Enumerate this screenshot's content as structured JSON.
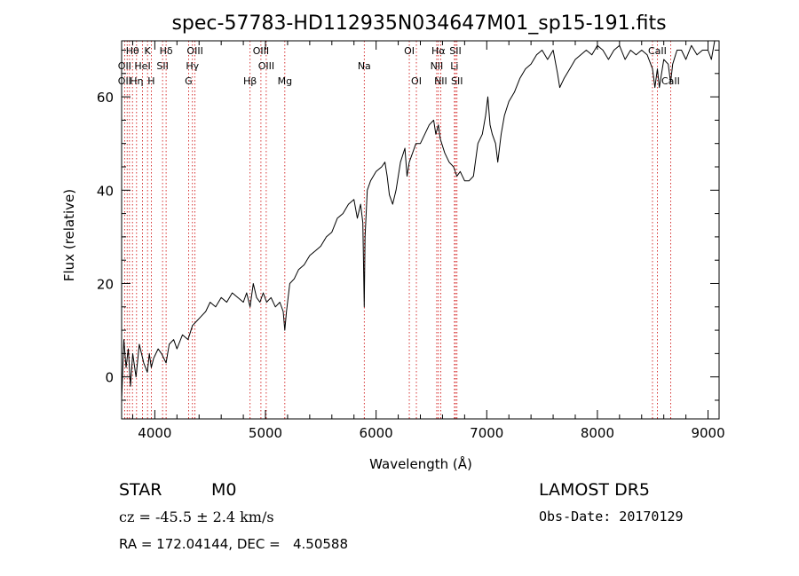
{
  "chart_data": {
    "type": "line",
    "title": "spec-57783-HD112935N034647M01_sp15-191.fits",
    "xlabel": "Wavelength (Å)",
    "ylabel": "Flux (relative)",
    "xlim": [
      3700,
      9100
    ],
    "ylim": [
      -9,
      72
    ],
    "xticks": [
      4000,
      5000,
      6000,
      7000,
      8000,
      9000
    ],
    "yticks": [
      0,
      20,
      40,
      60
    ],
    "series": [
      {
        "color": "#000000",
        "x": [
          3700,
          3720,
          3740,
          3760,
          3780,
          3800,
          3830,
          3860,
          3900,
          3933,
          3950,
          3968,
          3990,
          4030,
          4060,
          4102,
          4130,
          4170,
          4200,
          4250,
          4300,
          4340,
          4380,
          4420,
          4460,
          4500,
          4550,
          4600,
          4650,
          4700,
          4750,
          4800,
          4830,
          4861,
          4890,
          4920,
          4950,
          4980,
          5010,
          5050,
          5090,
          5130,
          5160,
          5175,
          5190,
          5220,
          5260,
          5300,
          5350,
          5400,
          5450,
          5500,
          5550,
          5600,
          5650,
          5700,
          5750,
          5800,
          5830,
          5860,
          5880,
          5893,
          5900,
          5920,
          5950,
          6000,
          6050,
          6080,
          6100,
          6120,
          6150,
          6180,
          6220,
          6260,
          6280,
          6300,
          6330,
          6360,
          6400,
          6440,
          6480,
          6520,
          6540,
          6563,
          6580,
          6620,
          6660,
          6700,
          6730,
          6760,
          6800,
          6840,
          6880,
          6920,
          6960,
          6990,
          7010,
          7030,
          7050,
          7080,
          7100,
          7130,
          7160,
          7200,
          7250,
          7300,
          7350,
          7400,
          7450,
          7500,
          7550,
          7600,
          7640,
          7660,
          7680,
          7700,
          7750,
          7800,
          7850,
          7900,
          7950,
          8000,
          8050,
          8100,
          8150,
          8200,
          8250,
          8300,
          8350,
          8400,
          8450,
          8498,
          8520,
          8542,
          8560,
          8600,
          8640,
          8662,
          8680,
          8720,
          8760,
          8800,
          8850,
          8900,
          8950,
          9000,
          9030,
          9060,
          9080
        ],
        "values": [
          -5,
          8,
          2,
          6,
          -2,
          5,
          0,
          7,
          3,
          1,
          5,
          2,
          4,
          6,
          5,
          3,
          7,
          8,
          6,
          9,
          8,
          11,
          12,
          13,
          14,
          16,
          15,
          17,
          16,
          18,
          17,
          16,
          18,
          15,
          20,
          17,
          16,
          18,
          16,
          17,
          15,
          16,
          14,
          10,
          14,
          20,
          21,
          23,
          24,
          26,
          27,
          28,
          30,
          31,
          34,
          35,
          37,
          38,
          34,
          37,
          33,
          15,
          30,
          40,
          42,
          44,
          45,
          46,
          43,
          39,
          37,
          40,
          46,
          49,
          43,
          46,
          48,
          50,
          50,
          52,
          54,
          55,
          52,
          54,
          51,
          48,
          46,
          45,
          43,
          44,
          42,
          42,
          43,
          50,
          52,
          56,
          60,
          54,
          52,
          50,
          46,
          52,
          56,
          59,
          61,
          64,
          66,
          67,
          69,
          70,
          68,
          70,
          65,
          62,
          63,
          64,
          66,
          68,
          69,
          70,
          69,
          71,
          70,
          68,
          70,
          71,
          68,
          70,
          69,
          70,
          69,
          66,
          62,
          66,
          62,
          68,
          67,
          63,
          67,
          70,
          70,
          68,
          71,
          69,
          70,
          70,
          68,
          72,
          72
        ]
      }
    ],
    "line_markers": [
      {
        "name": "Hθ",
        "wavelength": 3798,
        "row": 1
      },
      {
        "name": "K",
        "wavelength": 3934,
        "row": 1
      },
      {
        "name": "Hδ",
        "wavelength": 4102,
        "row": 1
      },
      {
        "name": "OIII",
        "wavelength": 4363,
        "row": 1
      },
      {
        "name": "OIII",
        "wavelength": 4959,
        "row": 1
      },
      {
        "name": "OI",
        "wavelength": 6300,
        "row": 1
      },
      {
        "name": "Hα",
        "wavelength": 6563,
        "row": 1
      },
      {
        "name": "SII",
        "wavelength": 6717,
        "row": 1
      },
      {
        "name": "CaII",
        "wavelength": 8542,
        "row": 1
      },
      {
        "name": "OII",
        "wavelength": 3727,
        "row": 2
      },
      {
        "name": "HeI",
        "wavelength": 3889,
        "row": 2
      },
      {
        "name": "SII",
        "wavelength": 4070,
        "row": 2
      },
      {
        "name": "Hγ",
        "wavelength": 4340,
        "row": 2
      },
      {
        "name": "OIII",
        "wavelength": 5007,
        "row": 2
      },
      {
        "name": "Na",
        "wavelength": 5893,
        "row": 2
      },
      {
        "name": "NII",
        "wavelength": 6548,
        "row": 2
      },
      {
        "name": "Li",
        "wavelength": 6708,
        "row": 2
      },
      {
        "name": "OII",
        "wavelength": 3727,
        "row": 3
      },
      {
        "name": "Hη",
        "wavelength": 3835,
        "row": 3
      },
      {
        "name": "H",
        "wavelength": 3968,
        "row": 3
      },
      {
        "name": "G",
        "wavelength": 4305,
        "row": 3
      },
      {
        "name": "Hβ",
        "wavelength": 4861,
        "row": 3
      },
      {
        "name": "Mg",
        "wavelength": 5175,
        "row": 3
      },
      {
        "name": "OI",
        "wavelength": 6364,
        "row": 3
      },
      {
        "name": "NII",
        "wavelength": 6584,
        "row": 3
      },
      {
        "name": "SII",
        "wavelength": 6731,
        "row": 3
      },
      {
        "name": "CaII",
        "wavelength": 8662,
        "row": 3
      }
    ],
    "marker_lines": [
      3727,
      3750,
      3771,
      3798,
      3835,
      3889,
      3934,
      3968,
      4070,
      4102,
      4305,
      4340,
      4363,
      4861,
      4959,
      5007,
      5175,
      5893,
      6300,
      6364,
      6548,
      6563,
      6584,
      6708,
      6717,
      6731,
      8498,
      8542,
      8662
    ],
    "marker_color": "#cc0000"
  },
  "info": {
    "object_type": "STAR",
    "subclass": "M0",
    "survey": "LAMOST DR5",
    "cz": "cz = -45.5 ± 2.4 km/s",
    "obs_date": "Obs-Date: 20170129",
    "coords": "RA = 172.04144, DEC =   4.50588"
  }
}
